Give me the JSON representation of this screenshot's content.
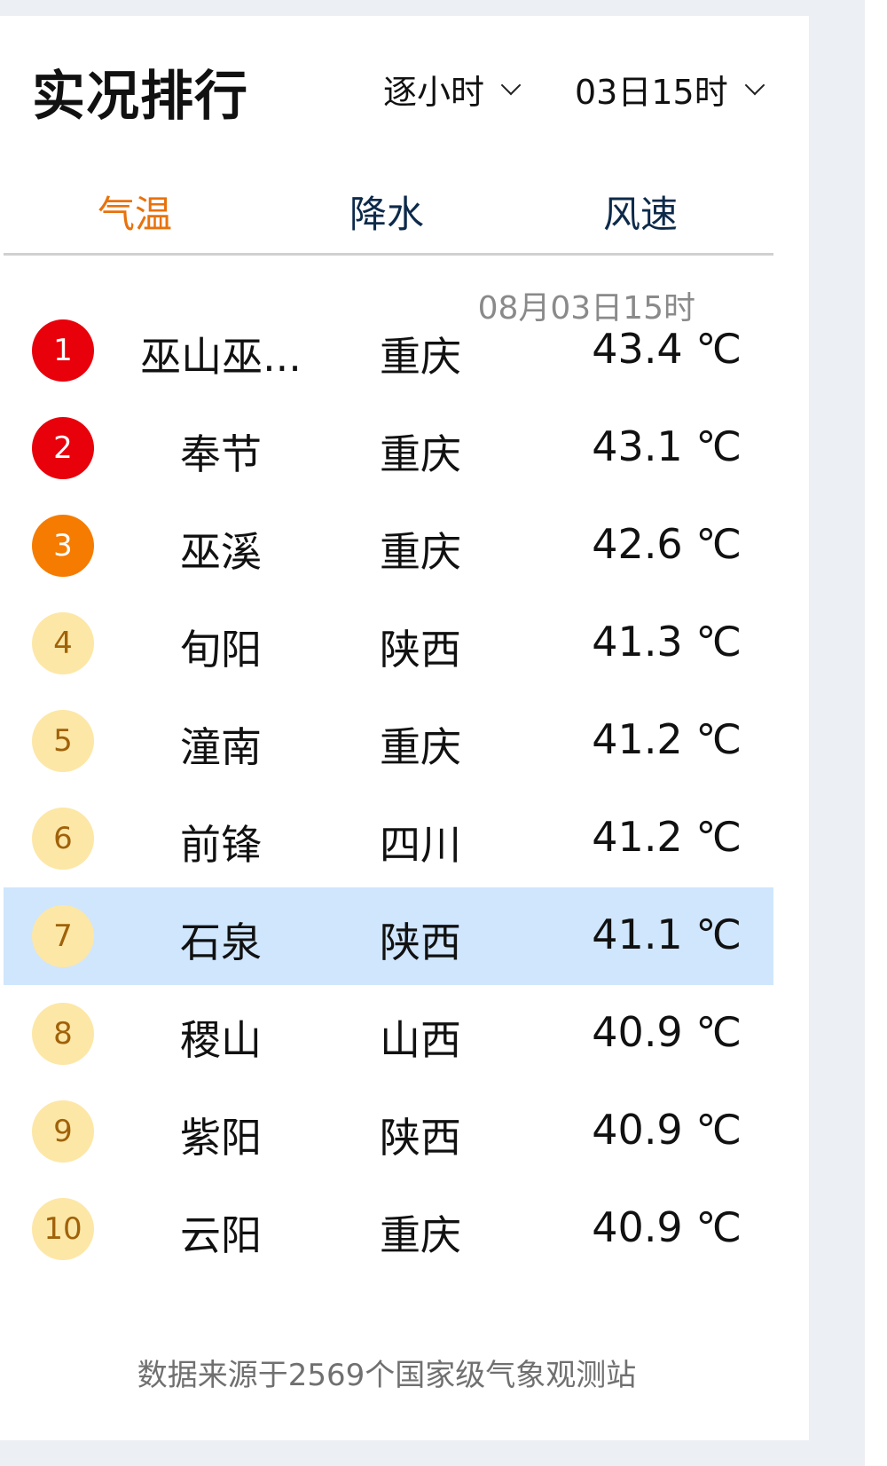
{
  "header": {
    "title": "实况排行",
    "interval": "逐小时",
    "time": "03日15时"
  },
  "tabs": [
    {
      "label": "气温",
      "active": true
    },
    {
      "label": "降水",
      "active": false
    },
    {
      "label": "风速",
      "active": false
    }
  ],
  "timestamp": "08月03日15时",
  "colors": {
    "rank1": "#e8000b",
    "rank2": "#e8000b",
    "rank3": "#f57c00",
    "rank_other": "#fde7a6",
    "active_tab": "#e8720c",
    "highlight": "#cfe6fd"
  },
  "rows": [
    {
      "rank": "1",
      "name": "巫山巫...",
      "province": "重庆",
      "temp": "43.4 ℃"
    },
    {
      "rank": "2",
      "name": "奉节",
      "province": "重庆",
      "temp": "43.1 ℃"
    },
    {
      "rank": "3",
      "name": "巫溪",
      "province": "重庆",
      "temp": "42.6 ℃"
    },
    {
      "rank": "4",
      "name": "旬阳",
      "province": "陕西",
      "temp": "41.3 ℃"
    },
    {
      "rank": "5",
      "name": "潼南",
      "province": "重庆",
      "temp": "41.2 ℃"
    },
    {
      "rank": "6",
      "name": "前锋",
      "province": "四川",
      "temp": "41.2 ℃"
    },
    {
      "rank": "7",
      "name": "石泉",
      "province": "陕西",
      "temp": "41.1 ℃",
      "highlighted": true
    },
    {
      "rank": "8",
      "name": "稷山",
      "province": "山西",
      "temp": "40.9 ℃"
    },
    {
      "rank": "9",
      "name": "紫阳",
      "province": "陕西",
      "temp": "40.9 ℃"
    },
    {
      "rank": "10",
      "name": "云阳",
      "province": "重庆",
      "temp": "40.9 ℃"
    }
  ],
  "footer": "数据来源于2569个国家级气象观测站"
}
